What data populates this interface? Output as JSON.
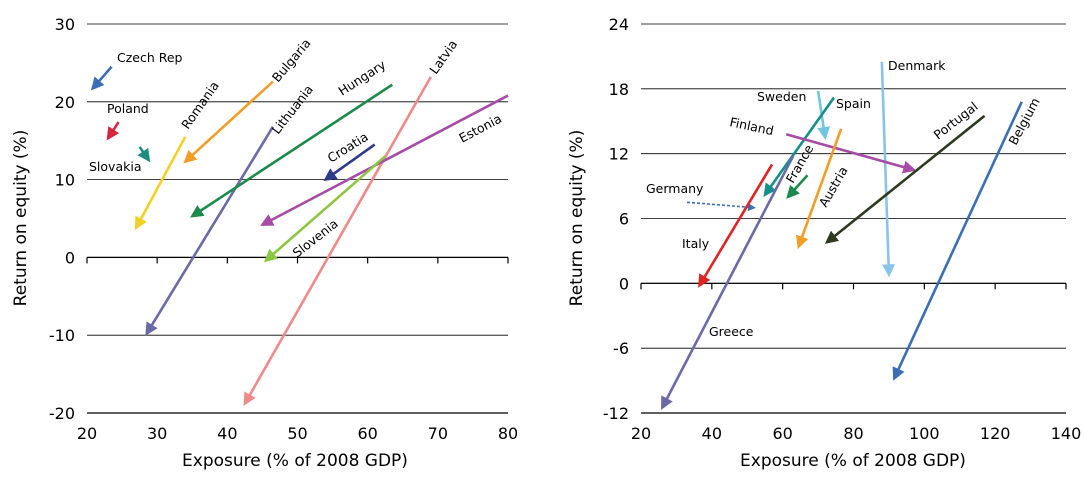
{
  "chart_data": [
    {
      "type": "line",
      "subtype": "arrow-trajectories",
      "xlabel": "Exposure (% of 2008 GDP)",
      "ylabel": "Return on equity (%)",
      "xlim": [
        20,
        80
      ],
      "ylim": [
        -20,
        30
      ],
      "xticks": [
        20,
        30,
        40,
        50,
        60,
        70,
        80
      ],
      "yticks": [
        -20,
        -10,
        0,
        10,
        20,
        30
      ],
      "xtick_labels": [
        "20",
        "30",
        "40",
        "50",
        "60",
        "70",
        "80"
      ],
      "ytick_labels": [
        "-20",
        "-10",
        "0",
        "10",
        "20",
        "30"
      ],
      "grid": "horizontal",
      "series": [
        {
          "name": "Czech Rep",
          "color": "#3a6fb5",
          "from": [
            23.5,
            24.5
          ],
          "to": [
            20.8,
            21.7
          ]
        },
        {
          "name": "Poland",
          "color": "#d7263d",
          "from": [
            24.5,
            17.4
          ],
          "to": [
            23.0,
            15.3
          ]
        },
        {
          "name": "Slovakia",
          "color": "#1e8c80",
          "from": [
            27.5,
            14.2
          ],
          "to": [
            28.8,
            12.5
          ]
        },
        {
          "name": "Romania",
          "color": "#f2d024",
          "from": [
            34.0,
            15.5
          ],
          "to": [
            27.0,
            3.8
          ]
        },
        {
          "name": "Bulgaria",
          "color": "#f39c27",
          "from": [
            46.5,
            22.6
          ],
          "to": [
            34.0,
            12.3
          ]
        },
        {
          "name": "Lithuania",
          "color": "#6b6aa6",
          "from": [
            46.5,
            16.8
          ],
          "to": [
            28.5,
            -9.8
          ]
        },
        {
          "name": "Hungary",
          "color": "#1c8a4a",
          "from": [
            63.5,
            22.2
          ],
          "to": [
            35.0,
            5.3
          ]
        },
        {
          "name": "Croatia",
          "color": "#2e3a8c",
          "from": [
            61.0,
            14.5
          ],
          "to": [
            54.0,
            10.0
          ]
        },
        {
          "name": "Latvia",
          "color": "#ef8a8a",
          "from": [
            69.0,
            23.2
          ],
          "to": [
            42.5,
            -18.8
          ]
        },
        {
          "name": "Estonia",
          "color": "#a64ca6",
          "from": [
            80.0,
            20.8
          ],
          "to": [
            45.0,
            4.2
          ]
        },
        {
          "name": "Slovenia",
          "color": "#8dc63f",
          "from": [
            62.5,
            13.0
          ],
          "to": [
            45.5,
            -0.4
          ]
        }
      ]
    },
    {
      "type": "line",
      "subtype": "arrow-trajectories",
      "xlabel": "Exposure (% of 2008 GDP)",
      "ylabel": "Return on equity (%)",
      "xlim": [
        20,
        140
      ],
      "ylim": [
        -12,
        24
      ],
      "xticks": [
        20,
        40,
        60,
        80,
        100,
        120,
        140
      ],
      "yticks": [
        -12,
        -6,
        0,
        6,
        12,
        18,
        24
      ],
      "xtick_labels": [
        "20",
        "40",
        "60",
        "80",
        "100",
        "120",
        "140"
      ],
      "ytick_labels": [
        "-12",
        "-6",
        "0",
        "6",
        "12",
        "18",
        "24"
      ],
      "grid": "horizontal",
      "series": [
        {
          "name": "Denmark",
          "color": "#89c4e8",
          "from": [
            88.0,
            20.5
          ],
          "to": [
            90.0,
            0.8
          ]
        },
        {
          "name": "Sweden",
          "color": "#6fc7e0",
          "from": [
            70.0,
            17.8
          ],
          "to": [
            72.0,
            13.5
          ]
        },
        {
          "name": "Spain",
          "color": "#14908a",
          "from": [
            74.5,
            17.2
          ],
          "to": [
            55.0,
            8.2
          ]
        },
        {
          "name": "Finland",
          "color": "#a64ca6",
          "from": [
            61.0,
            13.8
          ],
          "to": [
            97.0,
            10.5
          ]
        },
        {
          "name": "France",
          "color": "#1c8a4a",
          "from": [
            67.0,
            10.0
          ],
          "to": [
            61.5,
            8.0
          ]
        },
        {
          "name": "Austria",
          "color": "#f39c27",
          "from": [
            76.5,
            14.3
          ],
          "to": [
            64.5,
            3.4
          ]
        },
        {
          "name": "Portugal",
          "color": "#2d3a1e",
          "from": [
            117.0,
            15.5
          ],
          "to": [
            72.5,
            3.8
          ]
        },
        {
          "name": "Belgium",
          "color": "#3a6fb5",
          "from": [
            127.5,
            16.8
          ],
          "to": [
            91.5,
            -8.8
          ]
        },
        {
          "name": "Germany",
          "color": "#3a6fb5",
          "from": [
            33.0,
            7.5
          ],
          "to": [
            52.0,
            7.0
          ],
          "dashed": true
        },
        {
          "name": "Italy",
          "color": "#e02424",
          "from": [
            57.0,
            11.0
          ],
          "to": [
            36.5,
            -0.2
          ]
        },
        {
          "name": "Greece",
          "color": "#6b6aa6",
          "from": [
            63.0,
            11.8
          ],
          "to": [
            26.0,
            -11.5
          ]
        }
      ]
    }
  ]
}
